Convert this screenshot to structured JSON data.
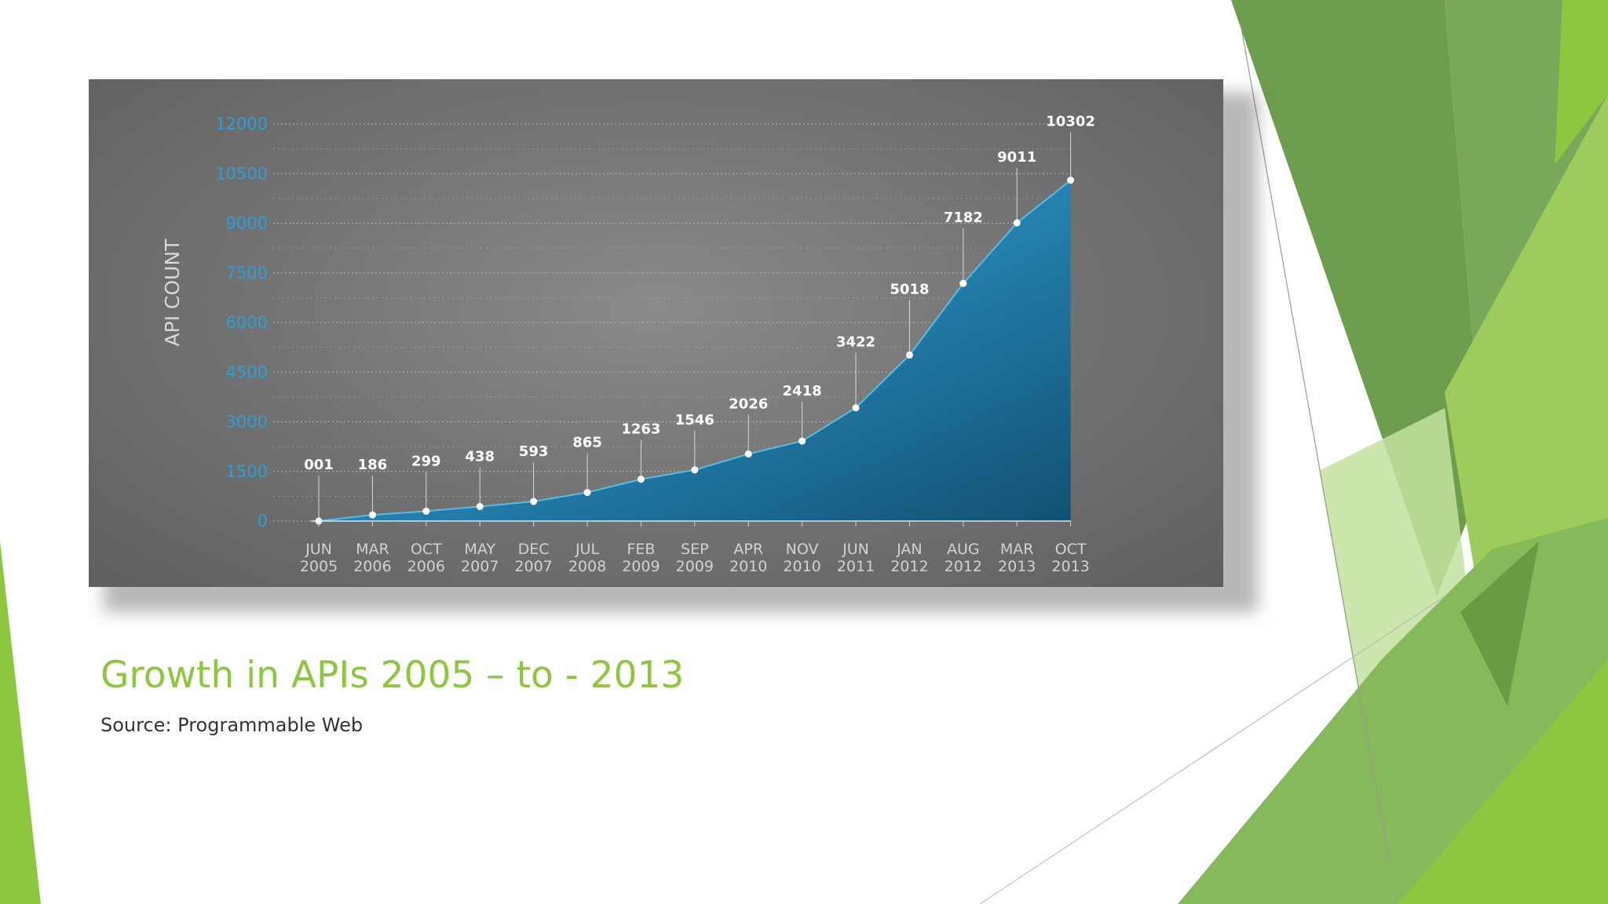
{
  "slide": {
    "title": "Growth in APIs 2005 – to - 2013",
    "source": "Source: Programmable Web"
  },
  "colors": {
    "title": "#8dc63f",
    "area_light": "#2ea6d6",
    "area_dark": "#0f5f86",
    "axis_tick": "#2b9fd8",
    "chart_background": "#6f6f6f"
  },
  "chart_data": {
    "type": "area",
    "ylabel": "API COUNT",
    "xlabel": "",
    "ylim": [
      0,
      12000
    ],
    "yticks": [
      "0",
      "1500",
      "3000",
      "4500",
      "6000",
      "7500",
      "9000",
      "10500",
      "12000"
    ],
    "grid": true,
    "legend": "none",
    "categories": [
      [
        "JUN",
        "2005"
      ],
      [
        "MAR",
        "2006"
      ],
      [
        "OCT",
        "2006"
      ],
      [
        "MAY",
        "2007"
      ],
      [
        "DEC",
        "2007"
      ],
      [
        "JUL",
        "2008"
      ],
      [
        "FEB",
        "2009"
      ],
      [
        "SEP",
        "2009"
      ],
      [
        "APR",
        "2010"
      ],
      [
        "NOV",
        "2010"
      ],
      [
        "JUN",
        "2011"
      ],
      [
        "JAN",
        "2012"
      ],
      [
        "AUG",
        "2012"
      ],
      [
        "MAR",
        "2013"
      ],
      [
        "OCT",
        "2013"
      ]
    ],
    "values": [
      1,
      186,
      299,
      438,
      593,
      865,
      1263,
      1546,
      2026,
      2418,
      3422,
      5018,
      7182,
      9011,
      10302
    ],
    "value_labels": [
      "001",
      "186",
      "299",
      "438",
      "593",
      "865",
      "1263",
      "1546",
      "2026",
      "2418",
      "3422",
      "5018",
      "7182",
      "9011",
      "10302"
    ]
  }
}
